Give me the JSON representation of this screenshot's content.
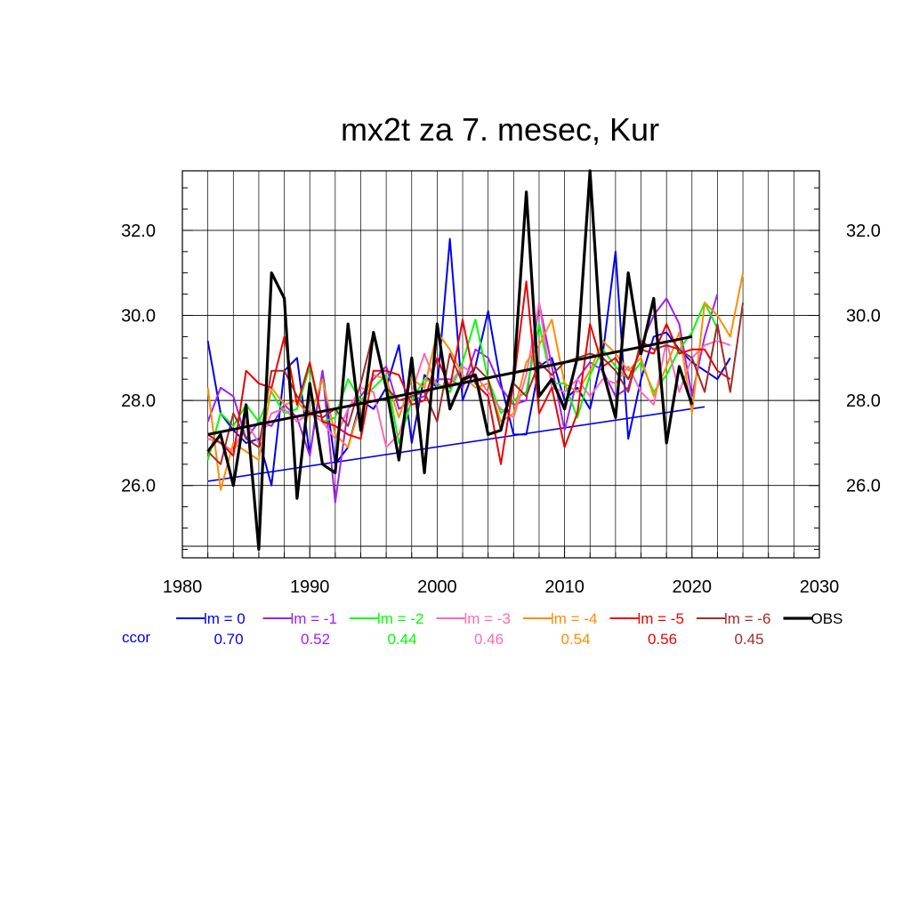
{
  "chart_data": {
    "type": "line",
    "title": "mx2t za 7. mesec, Kur",
    "xlabel": "",
    "ylabel": "",
    "xlim": [
      1980,
      2030
    ],
    "ylim": [
      24.3,
      33.4
    ],
    "x_ticks": [
      1980,
      1990,
      2000,
      2010,
      2020,
      2030
    ],
    "y_ticks": [
      26.0,
      28.0,
      30.0,
      32.0
    ],
    "y_tick_labels": [
      "26.0",
      "28.0",
      "30.0",
      "32.0"
    ],
    "grid": true,
    "ccor_label": "ccor",
    "series": [
      {
        "name": "lm = 0",
        "color": "#0000ee",
        "ccor": "0.70",
        "x_start": 1982,
        "values": [
          29.4,
          27.7,
          27.3,
          27.0,
          27.1,
          26.0,
          28.7,
          29.0,
          26.7,
          28.7,
          26.5,
          26.9,
          28.0,
          27.8,
          28.3,
          29.3,
          27.0,
          28.6,
          28.3,
          31.8,
          28.0,
          28.8,
          30.1,
          28.4,
          27.2,
          27.2,
          28.8,
          29.0,
          28.0,
          28.3,
          27.8,
          29.1,
          31.5,
          27.1,
          28.5,
          29.5,
          29.6,
          29.2,
          28.9,
          28.7,
          28.5,
          29.0
        ],
        "trend": [
          [
            1982,
            26.1
          ],
          [
            2021,
            27.85
          ]
        ]
      },
      {
        "name": "lm = -1",
        "color": "#a020f0",
        "ccor": "0.52",
        "x_start": 1982,
        "values": [
          27.5,
          28.3,
          28.1,
          27.1,
          27.5,
          27.4,
          27.9,
          27.6,
          26.7,
          28.7,
          25.6,
          27.8,
          28.1,
          28.5,
          28.8,
          27.8,
          28.0,
          28.1,
          28.5,
          28.5,
          28.3,
          29.2,
          29.0,
          28.3,
          27.9,
          28.0,
          30.3,
          28.8,
          27.3,
          28.5,
          28.9,
          28.7,
          28.1,
          28.3,
          29.3,
          30.0,
          30.4,
          29.8,
          28.1,
          29.5,
          30.5
        ],
        "x_start_override": 1982
      },
      {
        "name": "lm = -2",
        "color": "#00ff00",
        "ccor": "0.44",
        "x_start": 1982,
        "values": [
          26.6,
          27.7,
          27.4,
          27.9,
          27.5,
          28.2,
          27.7,
          27.8,
          28.8,
          27.5,
          27.6,
          28.5,
          28.0,
          28.3,
          28.6,
          27.0,
          28.0,
          28.5,
          28.4,
          28.2,
          28.9,
          29.9,
          28.5,
          27.7,
          28.0,
          28.2,
          29.8,
          28.4,
          28.4,
          27.6,
          28.6,
          29.2,
          28.8,
          28.5,
          28.9,
          28.2,
          28.6,
          29.2,
          29.6,
          30.3,
          29.7
        ],
        "x_start_override": 1982
      },
      {
        "name": "lm = -3",
        "color": "#ff69b4",
        "ccor": "0.46",
        "x_start": 1982,
        "values": [
          27.1,
          27.0,
          26.8,
          27.5,
          27.0,
          27.7,
          27.8,
          27.5,
          27.7,
          27.5,
          27.1,
          27.8,
          28.3,
          28.2,
          26.9,
          27.2,
          28.2,
          29.1,
          28.3,
          28.4,
          28.8,
          28.6,
          28.2,
          27.8,
          27.6,
          28.6,
          30.3,
          28.3,
          28.2,
          28.5,
          28.1,
          28.5,
          28.4,
          28.8,
          28.2,
          27.9,
          29.4,
          28.2,
          29.0,
          29.3,
          29.4,
          29.3
        ],
        "x_start_override": 1982
      },
      {
        "name": "lm = -4",
        "color": "#ff8c00",
        "ccor": "0.54",
        "x_start": 1982,
        "values": [
          28.3,
          25.9,
          27.0,
          26.8,
          26.6,
          28.3,
          27.9,
          28.0,
          27.6,
          28.5,
          27.2,
          26.9,
          27.9,
          28.6,
          28.5,
          27.6,
          28.5,
          28.3,
          29.6,
          29.2,
          28.6,
          28.3,
          28.4,
          27.5,
          27.7,
          28.9,
          29.3,
          29.9,
          28.4,
          28.2,
          28.7,
          29.4,
          29.1,
          28.7,
          29.0,
          28.1,
          28.8,
          29.6,
          27.7,
          30.3,
          30.0,
          29.5,
          31.0
        ],
        "x_start_override": 1982
      },
      {
        "name": "lm = -5",
        "color": "#ee0000",
        "ccor": "0.56",
        "x_start": 1982,
        "values": [
          27.2,
          27.0,
          26.7,
          28.7,
          28.4,
          28.3,
          29.5,
          27.9,
          28.9,
          27.5,
          27.4,
          27.2,
          27.1,
          28.7,
          28.7,
          28.6,
          27.9,
          28.0,
          29.0,
          28.3,
          29.9,
          28.4,
          28.1,
          26.5,
          28.4,
          30.8,
          27.7,
          28.3,
          26.9,
          27.7,
          29.8,
          28.8,
          29.0,
          28.5,
          29.2,
          29.1,
          29.8,
          29.1,
          29.2,
          29.2,
          28.7,
          28.5
        ],
        "x_start_override": 1982
      },
      {
        "name": "lm = -6",
        "color": "#a52a2a",
        "ccor": "0.45",
        "x_start": 1982,
        "values": [
          26.8,
          26.5,
          27.7,
          27.1,
          26.9,
          28.7,
          28.7,
          28.1,
          27.7,
          27.6,
          27.8,
          27.4,
          28.4,
          29.6,
          28.3,
          28.0,
          28.1,
          28.2,
          27.5,
          29.1,
          28.4,
          28.8,
          28.5,
          27.3,
          28.4,
          28.1,
          28.9,
          28.6,
          28.9,
          29.0,
          29.1,
          29.0,
          28.7,
          28.2,
          29.4,
          29.2,
          29.3,
          29.2,
          29.0,
          28.2,
          29.8,
          28.2,
          30.3
        ],
        "x_start_override": 1982
      },
      {
        "name": "OBS",
        "color": "#000000",
        "ccor": "",
        "x_start": 1982,
        "values": [
          26.8,
          27.2,
          26.0,
          27.9,
          24.5,
          31.0,
          30.4,
          25.7,
          28.4,
          26.5,
          26.3,
          29.8,
          27.3,
          29.6,
          28.3,
          26.6,
          29.0,
          26.3,
          29.8,
          27.8,
          28.5,
          28.6,
          27.2,
          27.3,
          28.5,
          32.9,
          28.1,
          28.5,
          27.8,
          29.0,
          33.4,
          28.7,
          27.6,
          31.0,
          29.1,
          30.4,
          27.0,
          28.8,
          27.9
        ],
        "trend": [
          [
            1982,
            27.2
          ],
          [
            2020,
            29.5
          ]
        ]
      }
    ]
  }
}
